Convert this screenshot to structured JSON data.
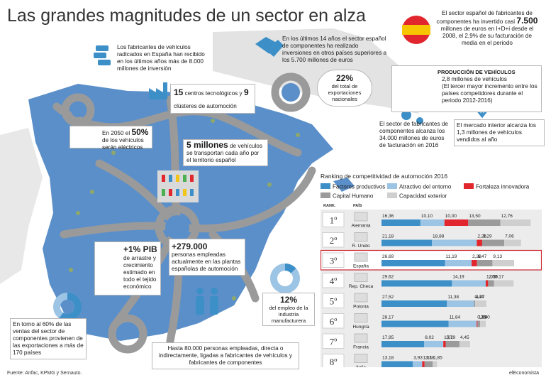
{
  "title": "Las grandes magnitudes de un sector en alza",
  "source": "Fuente: Anfac, KPMG y Sernauto.",
  "brand": "elEconomista",
  "notes": {
    "investment_received": "Los fabricantes de vehículos radicados en España han recibido en los últimos años más de 8.000 millones de inversión",
    "investment_abroad": "En los últimos 14 años el sector español de componentes ha realizado inversiones en otros países superiores a los 5.700 millones de euros",
    "rd_spend_pre": "El sector español de fabricantes de componentes ha invertido casi",
    "rd_spend_big": "7.500",
    "rd_spend_post": "millones de euros en I+D+i desde el 2008, el 2,9% de su facturación de media en el periodo",
    "tech_centers_1": "15",
    "tech_centers_2": "centros tecnológicos y",
    "tech_centers_3": "9",
    "tech_centers_4": "clústeres de automoción",
    "export_pct": "22%",
    "export_text": "del total de exportaciones nacionales",
    "production_title": "PRODUCCIÓN DE VEHÍCULOS",
    "production_line1": "2,8 millones de vehículos",
    "production_line2": "(El tercer mayor incremento entre los países competidores durante el periodo 2012-2016)",
    "components_text": "El sector de fabricantes de componentes alcanza los 34.000 millones de euros de facturación en 2016",
    "domestic_market": "El mercado interior alcanza los 1,3 millones de vehículos vendidos al año",
    "electric_pre": "En 2050 el",
    "electric_big": "50%",
    "electric_post": "de los vehículos serán eléctricos",
    "transport_big": "5 millones",
    "transport_text": "de vehículos se transportan cada año por el territorio español",
    "pib_big": "+1% PIB",
    "pib_text": "de arrastre y crecimiento estimado en todo el tejido económico",
    "employees_big": "+279.000",
    "employees_text": "personas empleadas actualmente en las plantas españolas de automoción",
    "employment_pct": "12%",
    "employment_text": "del empleo de la industria manufacturera",
    "exports_share": "En torno al 60% de las ventas del sector de componentes provienen de las exportaciones a más de 170 países",
    "indirect_jobs": "Hasta 80.000 personas empleadas, directa o indirectamente, ligadas a fabricantes de vehículos y fabricantes de componentes"
  },
  "ranking": {
    "title": "Ranking de competitividad de automoción 2016",
    "col_rank": "RANK.",
    "col_country": "PAÍS"
  },
  "colors": {
    "map": "#5b8fc9",
    "road": "#9a9a9a",
    "factores": "#3d8fc7",
    "entorno": "#9cc4e4",
    "fortaleza": "#e1262d",
    "capital": "#9b9b9b",
    "capacidad": "#cfcfcf",
    "highlight": "#c9252c"
  },
  "chart_data": {
    "type": "bar",
    "stacked": true,
    "orientation": "horizontal",
    "title": "Ranking de competitividad de automoción 2016",
    "legend_position": "top",
    "categories": [
      "Alemania",
      "R. Unido",
      "España",
      "Rep. Checa",
      "Polonia",
      "Hungría",
      "Francia",
      "Italia"
    ],
    "ranks": [
      "1º",
      "2º",
      "3º",
      "4º",
      "5º",
      "6º",
      "7º",
      "8º"
    ],
    "highlight": "España",
    "series": [
      {
        "name": "Factores productivos",
        "values": [
          16.36,
          21.18,
          26.69,
          29.62,
          27.52,
          28.17,
          17.95,
          13.18
        ],
        "labels": [
          "16,36",
          "21,18",
          "26,69",
          "29,62",
          "27,52",
          "28,17",
          "17,95",
          "13,18"
        ]
      },
      {
        "name": "Atractivo del entorno",
        "values": [
          10.1,
          18.88,
          11.19,
          14.19,
          11.38,
          11.84,
          8.02,
          3.93
        ],
        "labels": [
          "10,10",
          "18,88",
          "11,19",
          "14,19",
          "11,38",
          "11,84",
          "8,02",
          "3,93"
        ]
      },
      {
        "name": "Fortaleza innovadora",
        "values": [
          10.0,
          2.25,
          2.28,
          1.02,
          0,
          0.35,
          1.01,
          1.01
        ],
        "labels": [
          "10,00",
          "2,25",
          "2,28",
          "1,02",
          "–",
          "0,35",
          "1,01",
          "1,01"
        ]
      },
      {
        "name": "Capital Humano",
        "values": [
          13.5,
          9.29,
          6.47,
          2.5,
          0.44,
          1.09,
          5.79,
          3.38
        ],
        "labels": [
          "13,50",
          "9,29",
          "6,47",
          "2,50",
          "0,44",
          "1,09",
          "5,79",
          "3,38"
        ]
      },
      {
        "name": "Capacidad exterior",
        "values": [
          12.76,
          7.06,
          9.13,
          8.17,
          4.77,
          2.4,
          4.45,
          1.85
        ],
        "labels": [
          "12,76",
          "7,06",
          "9,13",
          "8,17",
          "4,77",
          "2,40",
          "4,45",
          "1,85"
        ]
      }
    ]
  }
}
